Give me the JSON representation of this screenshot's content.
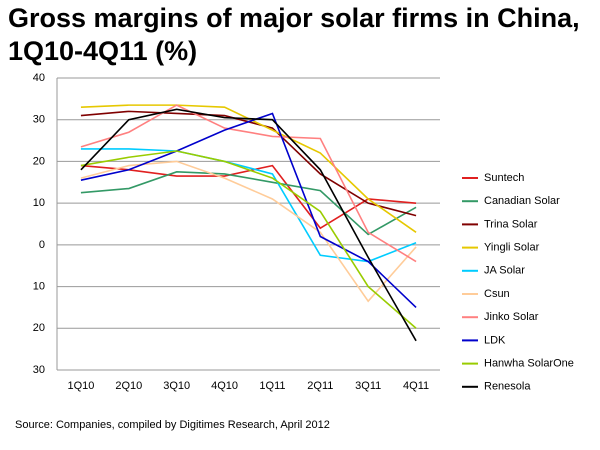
{
  "chart_data": {
    "type": "line",
    "title": "Gross margins of major solar firms in China, 1Q10-4Q11 (%)",
    "source": "Source: Companies, compiled by Digitimes Research, April 2012",
    "categories": [
      "1Q10",
      "2Q10",
      "3Q10",
      "4Q10",
      "1Q11",
      "2Q11",
      "3Q11",
      "4Q11"
    ],
    "ylim": [
      -30,
      40
    ],
    "yticks": [
      {
        "value": -30,
        "label": "30"
      },
      {
        "value": -20,
        "label": "20"
      },
      {
        "value": -10,
        "label": "10"
      },
      0,
      10,
      20,
      30,
      40
    ],
    "grid": true,
    "legend": "right",
    "series": [
      {
        "name": "Suntech",
        "color": "#e02020",
        "values": [
          19,
          18,
          16.5,
          16.5,
          19,
          4,
          11,
          10
        ]
      },
      {
        "name": "Canadian Solar",
        "color": "#339966",
        "values": [
          12.5,
          13.5,
          17.5,
          17,
          15,
          13,
          2.5,
          9
        ]
      },
      {
        "name": "Trina Solar",
        "color": "#800000",
        "values": [
          31,
          32,
          31.5,
          31,
          28,
          17,
          10,
          7
        ]
      },
      {
        "name": "Yingli Solar",
        "color": "#e6c800",
        "values": [
          33,
          33.5,
          33.5,
          33,
          27.5,
          22,
          11,
          3
        ]
      },
      {
        "name": "JA Solar",
        "color": "#00ccff",
        "values": [
          23,
          23,
          22.5,
          20,
          17,
          -2.5,
          -4,
          0.5
        ]
      },
      {
        "name": "Csun",
        "color": "#ffcc99",
        "values": [
          16,
          19,
          20,
          16,
          11,
          3,
          -13.5,
          -0.5
        ]
      },
      {
        "name": "Jinko Solar",
        "color": "#ff8080",
        "values": [
          23.5,
          27,
          33.5,
          28,
          26,
          25.5,
          3,
          -4
        ]
      },
      {
        "name": "LDK",
        "color": "#0000cc",
        "values": [
          15.5,
          18,
          22.5,
          27.5,
          31.5,
          2,
          -4,
          -15
        ]
      },
      {
        "name": "Hanwha SolarOne",
        "color": "#99cc00",
        "values": [
          19,
          21,
          22.5,
          20,
          16,
          8,
          -10,
          -20
        ]
      },
      {
        "name": "Renesola",
        "color": "#000000",
        "values": [
          18,
          30,
          32.5,
          30.5,
          30,
          18,
          -3,
          -23
        ]
      }
    ]
  }
}
